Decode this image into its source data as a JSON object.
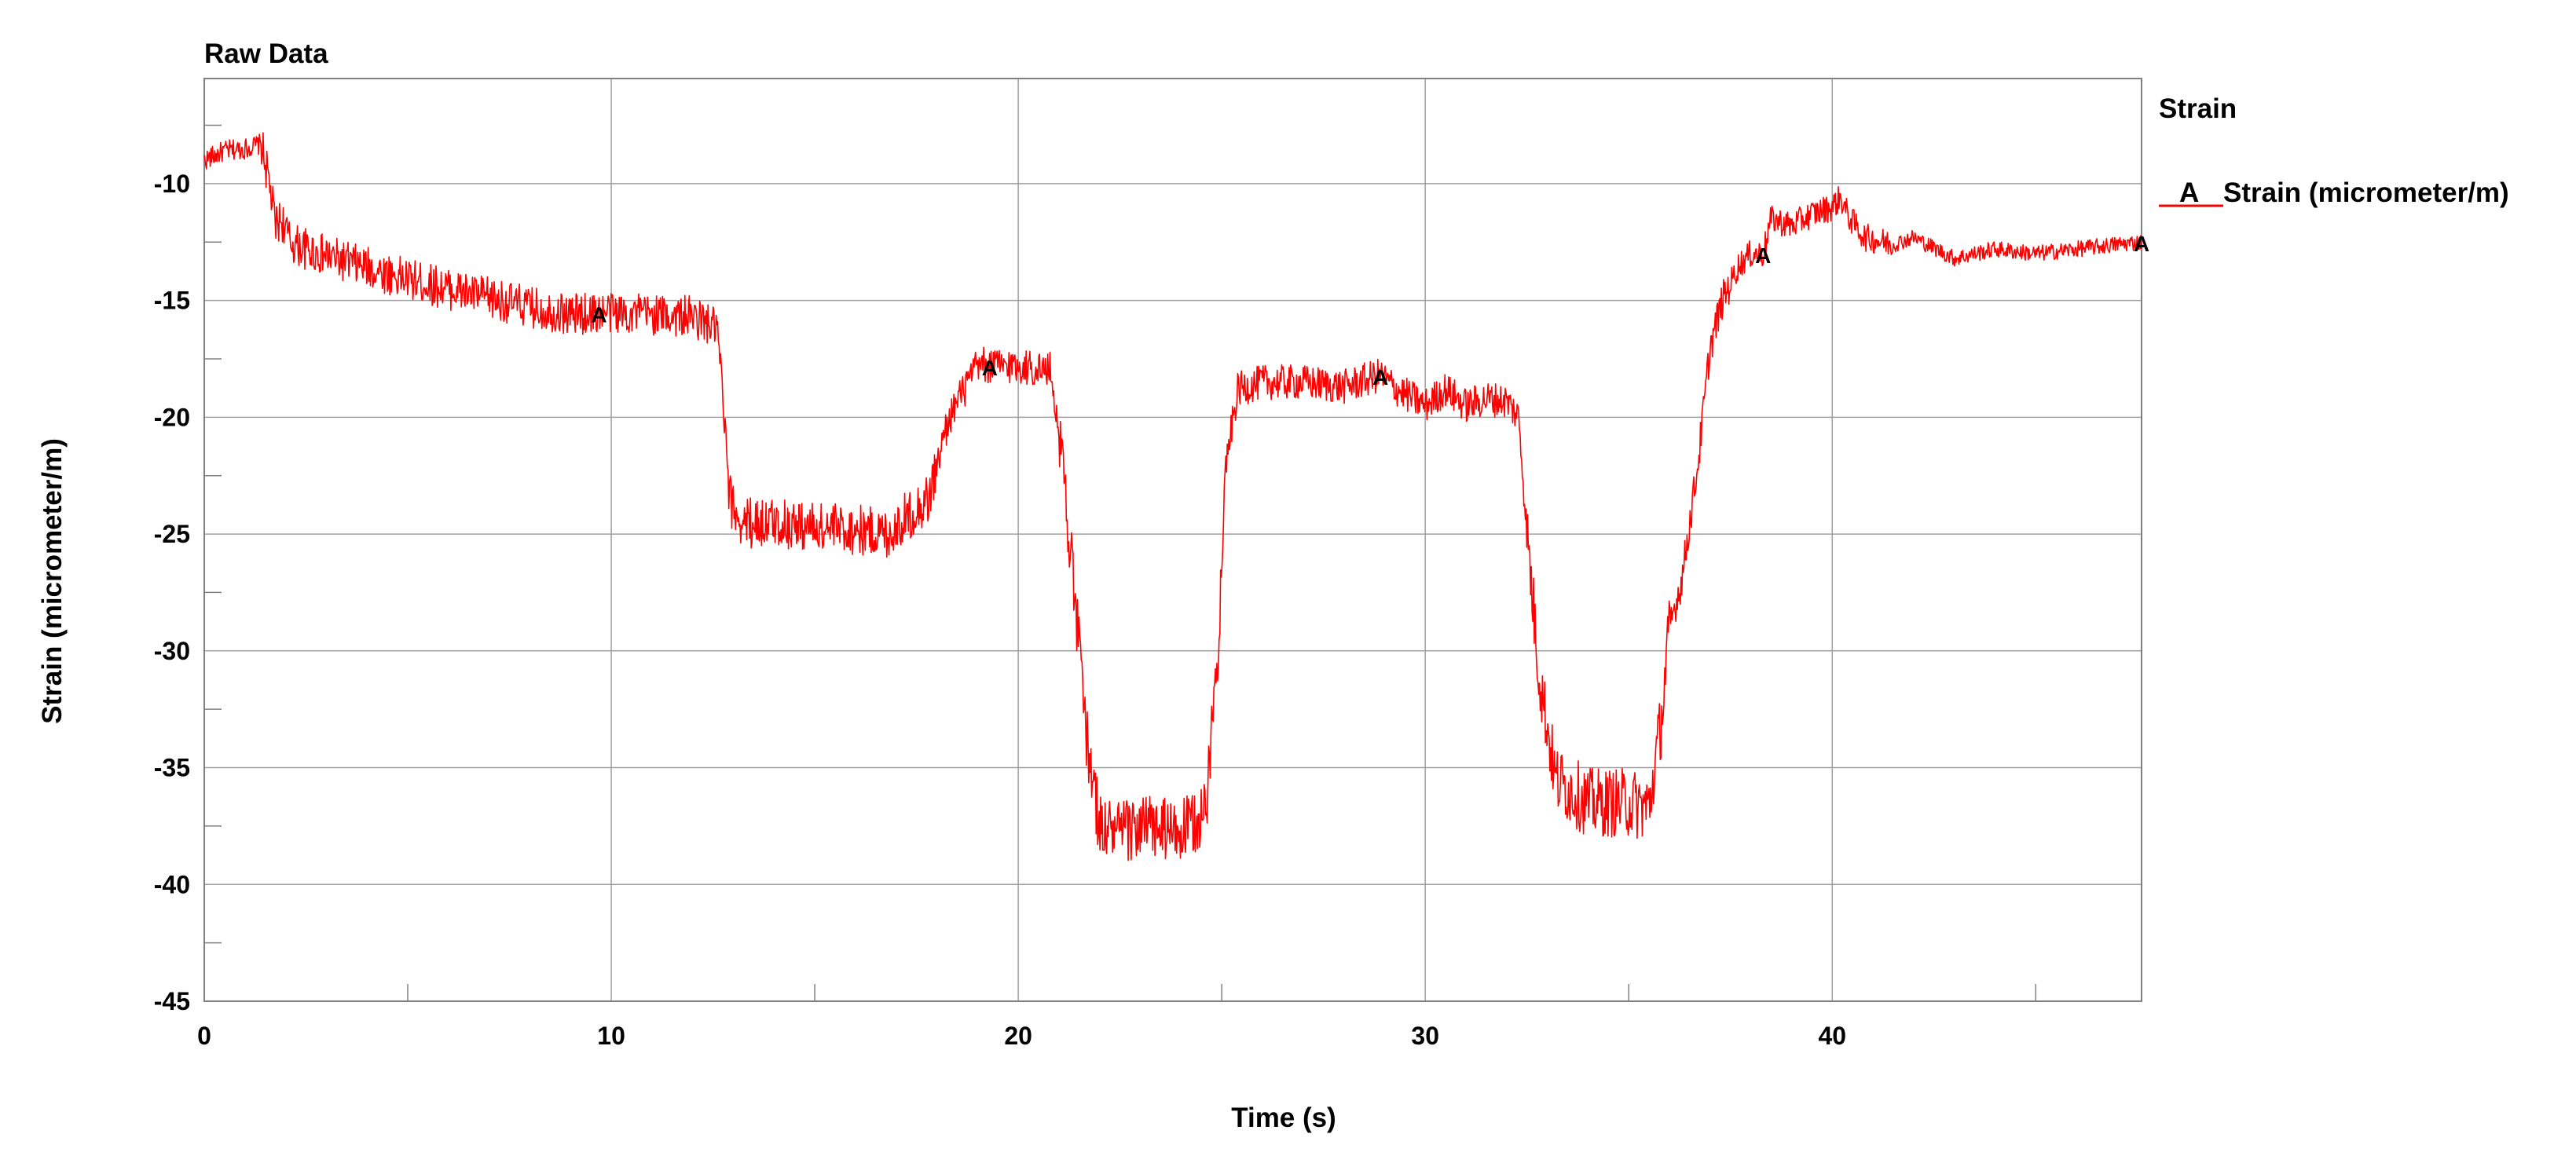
{
  "chart_data": {
    "type": "line",
    "title": "Raw Data",
    "xlabel": "Time (s)",
    "ylabel": "Strain (micrometer/m)",
    "xlim": [
      0,
      47.6
    ],
    "ylim": [
      -45,
      -5.5
    ],
    "x_ticks": [
      0,
      10,
      20,
      30,
      40
    ],
    "y_ticks": [
      -45,
      -40,
      -35,
      -30,
      -25,
      -20,
      -15,
      -10
    ],
    "x_tick_labels": [
      "0",
      "10",
      "20",
      "30",
      "40"
    ],
    "y_tick_labels": [
      "-45",
      "-40",
      "-35",
      "-30",
      "-25",
      "-20",
      "-15",
      "-10"
    ],
    "grid": true,
    "legend": {
      "title": "Strain",
      "placement": "right",
      "entries": [
        {
          "marker": "A",
          "label": "Strain (micrometer/m)"
        }
      ]
    },
    "series": [
      {
        "name": "Strain (micrometer/m)",
        "marker_letter": "A",
        "color": "#ff0000",
        "marker_x": [
          9.7,
          19.3,
          28.9,
          38.3,
          47.6
        ],
        "x": [
          0,
          0.5,
          1.0,
          1.4,
          1.6,
          1.75,
          1.9,
          2.1,
          2.5,
          3,
          4,
          5,
          6,
          7,
          8,
          9,
          10,
          11,
          12,
          12.6,
          12.75,
          12.9,
          13.2,
          14,
          15,
          16,
          16.8,
          17.3,
          17.8,
          18.3,
          19,
          20,
          20.8,
          21.1,
          21.4,
          21.7,
          22,
          22.5,
          23,
          24,
          24.6,
          24.9,
          25.1,
          25.4,
          26,
          27,
          28,
          28.9,
          29.3,
          30,
          30.5,
          31,
          31.5,
          32,
          32.3,
          32.5,
          32.8,
          33.2,
          34,
          35,
          35.5,
          35.8,
          36,
          36.3,
          36.7,
          37,
          37.3,
          37.7,
          38,
          38.3,
          38.5,
          39,
          39.5,
          40,
          40.2,
          40.4,
          40.8,
          41.5,
          42,
          43,
          44,
          45,
          46,
          47,
          47.6
        ],
        "y": [
          -9,
          -8.6,
          -8.5,
          -8.3,
          -10,
          -11.8,
          -11.5,
          -12.5,
          -12.8,
          -13.1,
          -13.6,
          -14.1,
          -14.5,
          -14.9,
          -15.3,
          -15.6,
          -15.5,
          -15.6,
          -15.7,
          -16.2,
          -19.5,
          -23.5,
          -24.5,
          -24.5,
          -24.7,
          -24.8,
          -25,
          -24.2,
          -23.5,
          -20,
          -17.8,
          -17.8,
          -18,
          -22,
          -28,
          -34,
          -37.5,
          -37.8,
          -37.5,
          -37.8,
          -37,
          -30,
          -22,
          -18.8,
          -18.5,
          -18.5,
          -18.7,
          -18.2,
          -18.8,
          -19.5,
          -18.8,
          -19.5,
          -19.2,
          -19.3,
          -20,
          -25,
          -31,
          -35.5,
          -36.5,
          -36.5,
          -36.7,
          -33,
          -29,
          -27,
          -22,
          -17,
          -15,
          -13.5,
          -13,
          -13,
          -11.5,
          -11.8,
          -11.3,
          -11,
          -10.6,
          -11.4,
          -12.3,
          -12.6,
          -12.3,
          -13.2,
          -12.8,
          -13,
          -12.8,
          -12.6,
          -12.5
        ]
      }
    ]
  }
}
